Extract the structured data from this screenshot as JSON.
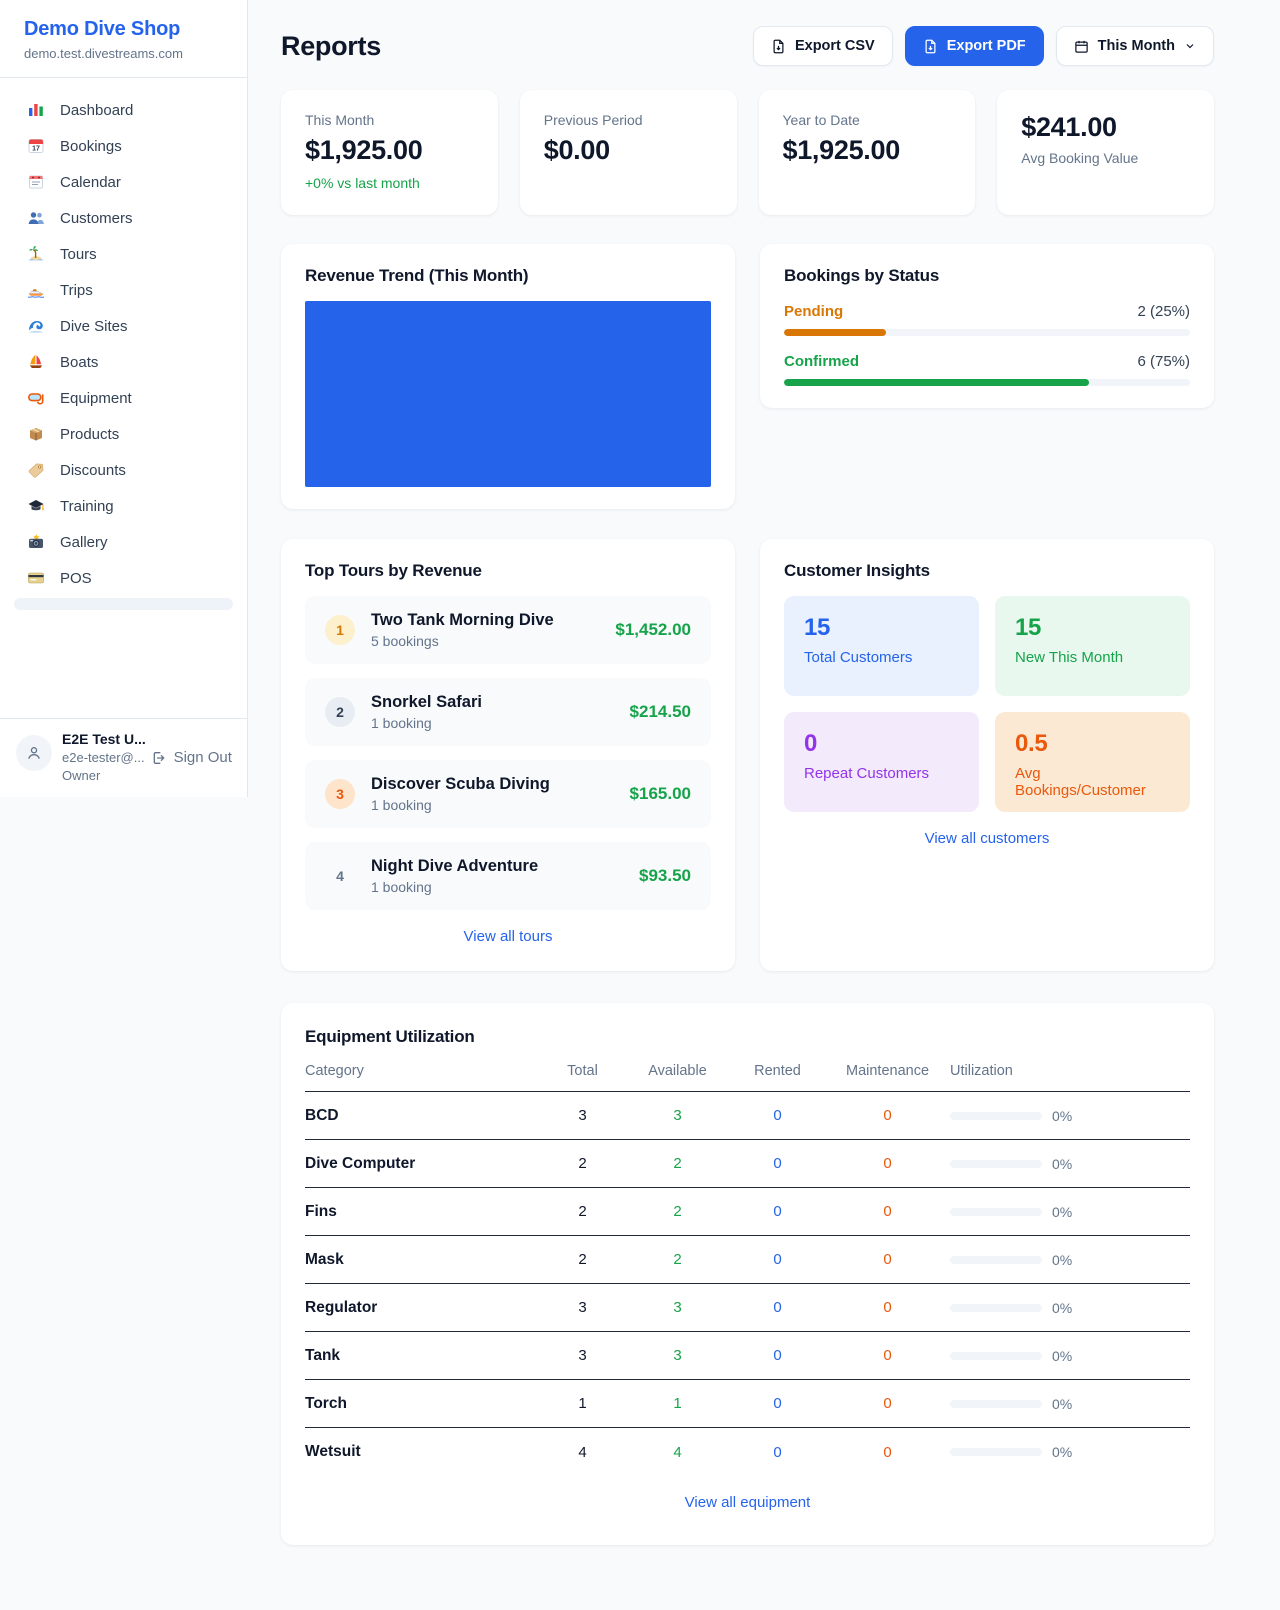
{
  "sidebar": {
    "title": "Demo Dive Shop",
    "subtitle": "demo.test.divestreams.com",
    "items": [
      {
        "label": "Dashboard",
        "icon": "dashboard-icon"
      },
      {
        "label": "Bookings",
        "icon": "bookings-calendar-icon"
      },
      {
        "label": "Calendar",
        "icon": "calendar-pad-icon"
      },
      {
        "label": "Customers",
        "icon": "customers-icon"
      },
      {
        "label": "Tours",
        "icon": "island-icon"
      },
      {
        "label": "Trips",
        "icon": "speedboat-icon"
      },
      {
        "label": "Dive Sites",
        "icon": "wave-icon"
      },
      {
        "label": "Boats",
        "icon": "sailboat-icon"
      },
      {
        "label": "Equipment",
        "icon": "dive-mask-icon"
      },
      {
        "label": "Products",
        "icon": "package-icon"
      },
      {
        "label": "Discounts",
        "icon": "tag-icon"
      },
      {
        "label": "Training",
        "icon": "graduation-cap-icon"
      },
      {
        "label": "Gallery",
        "icon": "camera-icon"
      },
      {
        "label": "POS",
        "icon": "credit-card-icon"
      }
    ],
    "user": {
      "name": "E2E Test U...",
      "email": "e2e-tester@...",
      "role": "Owner",
      "sign_out_label": "Sign Out"
    }
  },
  "header": {
    "title": "Reports",
    "export_csv_label": "Export CSV",
    "export_pdf_label": "Export PDF",
    "period_label": "This Month"
  },
  "stats": [
    {
      "label": "This Month",
      "value": "$1,925.00",
      "sub": "+0% vs last month"
    },
    {
      "label": "Previous Period",
      "value": "$0.00"
    },
    {
      "label": "Year to Date",
      "value": "$1,925.00"
    },
    {
      "label": "Avg Booking Value",
      "value": "$241.00"
    }
  ],
  "revenue_trend": {
    "title": "Revenue Trend (This Month)",
    "bar_color": "#2563eb"
  },
  "bookings_by_status": {
    "title": "Bookings by Status",
    "rows": [
      {
        "label": "Pending",
        "value": "2 (25%)",
        "percent": 25,
        "color": "#d97706"
      },
      {
        "label": "Confirmed",
        "value": "6 (75%)",
        "percent": 75,
        "color": "#16a34a"
      }
    ]
  },
  "top_tours": {
    "title": "Top Tours by Revenue",
    "view_all_label": "View all tours",
    "rows": [
      {
        "rank": "1",
        "name": "Two Tank Morning Dive",
        "bookings": "5 bookings",
        "revenue": "$1,452.00"
      },
      {
        "rank": "2",
        "name": "Snorkel Safari",
        "bookings": "1 booking",
        "revenue": "$214.50"
      },
      {
        "rank": "3",
        "name": "Discover Scuba Diving",
        "bookings": "1 booking",
        "revenue": "$165.00"
      },
      {
        "rank": "4",
        "name": "Night Dive Adventure",
        "bookings": "1 booking",
        "revenue": "$93.50"
      }
    ]
  },
  "customer_insights": {
    "title": "Customer Insights",
    "view_all_label": "View all customers",
    "tiles": [
      {
        "value": "15",
        "label": "Total Customers",
        "color": "#2563eb"
      },
      {
        "value": "15",
        "label": "New This Month",
        "color": "#16a34a"
      },
      {
        "value": "0",
        "label": "Repeat Customers",
        "color": "#9333ea"
      },
      {
        "value": "0.5",
        "label": "Avg Bookings/Customer",
        "color": "#ea580c"
      }
    ]
  },
  "equipment": {
    "title": "Equipment Utilization",
    "view_all_label": "View all equipment",
    "columns": [
      "Category",
      "Total",
      "Available",
      "Rented",
      "Maintenance",
      "Utilization"
    ],
    "rows": [
      {
        "category": "BCD",
        "total": "3",
        "available": "3",
        "rented": "0",
        "maintenance": "0",
        "utilization": "0%",
        "percent": 0
      },
      {
        "category": "Dive Computer",
        "total": "2",
        "available": "2",
        "rented": "0",
        "maintenance": "0",
        "utilization": "0%",
        "percent": 0
      },
      {
        "category": "Fins",
        "total": "2",
        "available": "2",
        "rented": "0",
        "maintenance": "0",
        "utilization": "0%",
        "percent": 0
      },
      {
        "category": "Mask",
        "total": "2",
        "available": "2",
        "rented": "0",
        "maintenance": "0",
        "utilization": "0%",
        "percent": 0
      },
      {
        "category": "Regulator",
        "total": "3",
        "available": "3",
        "rented": "0",
        "maintenance": "0",
        "utilization": "0%",
        "percent": 0
      },
      {
        "category": "Tank",
        "total": "3",
        "available": "3",
        "rented": "0",
        "maintenance": "0",
        "utilization": "0%",
        "percent": 0
      },
      {
        "category": "Torch",
        "total": "1",
        "available": "1",
        "rented": "0",
        "maintenance": "0",
        "utilization": "0%",
        "percent": 0
      },
      {
        "category": "Wetsuit",
        "total": "4",
        "available": "4",
        "rented": "0",
        "maintenance": "0",
        "utilization": "0%",
        "percent": 0
      }
    ]
  },
  "colors": {
    "accent": "#2563eb",
    "green": "#16a34a",
    "pending_orange": "#d97706",
    "maintenance_orange": "#ea580c",
    "purple": "#9333ea",
    "background": "#f8fafc"
  }
}
